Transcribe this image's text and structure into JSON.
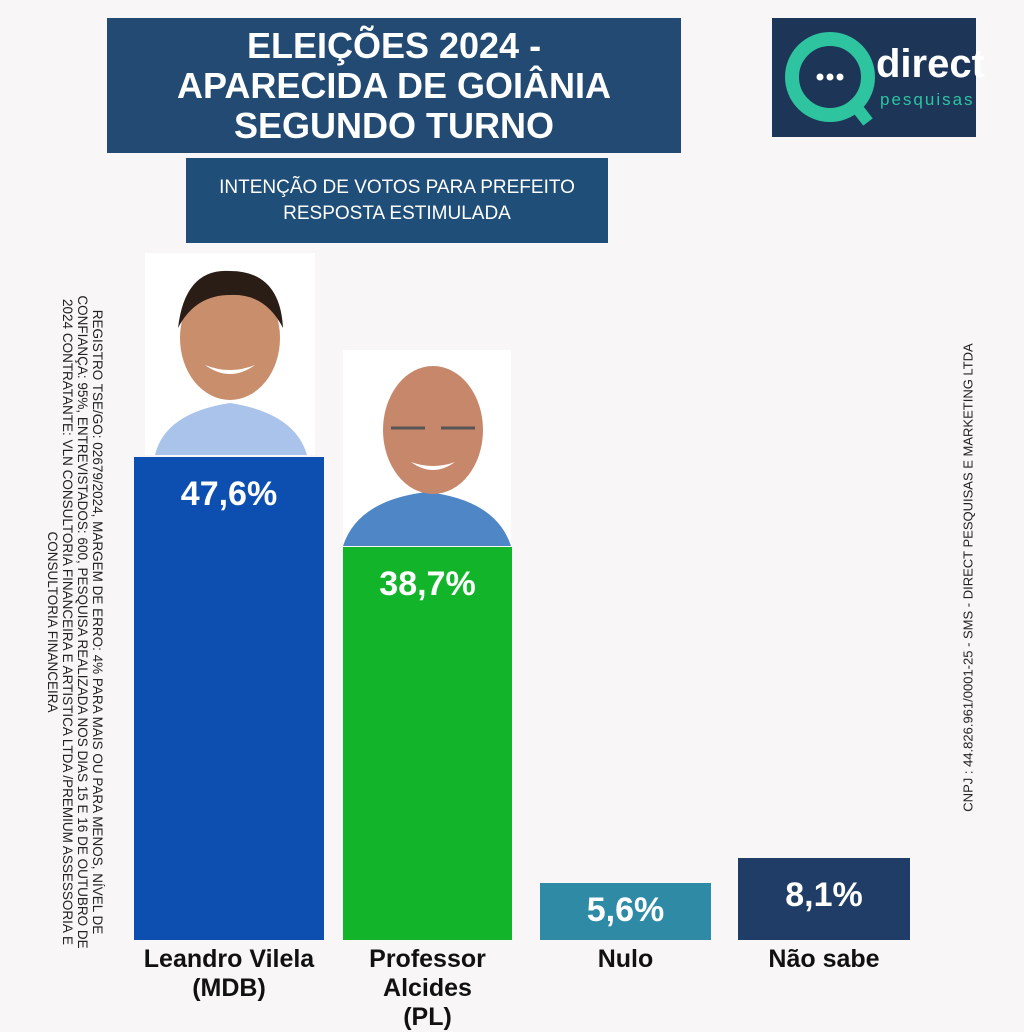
{
  "chart_data": {
    "type": "bar",
    "title": "ELEIÇÕES 2024 -\nAPARECIDA DE GOIÂNIA\nSEGUNDO TURNO",
    "subtitle": "INTENÇÃO DE VOTOS PARA PREFEITO\nRESPOSTA ESTIMULADA",
    "brand": {
      "name": "direct",
      "tagline": "pesquisas"
    },
    "methodology_note": "REGISTRO TSE/GO: 02679/2024, MARGEM DE ERRO: 4% PARA MAIS OU PARA MENOS, NÍVEL DE CONFIANÇA: 95%, ENTREVISTADOS: 600, PESQUISA REALIZADA NOS DIAS 15 E 16 DE OUTUBRO DE 2024 CONTRATANTE: VLN CONSULTORIA FINANCEIRA E ARTISTICA LTDA /PREMIUM ASSESSORIA E CONSULTORIA FINANCEIRA",
    "company_note": "CNPJ : 44.826.961/0001-25 - SMS - DIRECT PESQUISAS E MARKETING LTDA",
    "categories": [
      "Leandro Vilela\n(MDB)",
      "Professor Alcides\n(PL)",
      "Nulo",
      "Não sabe"
    ],
    "values": [
      47.6,
      38.7,
      5.6,
      8.1
    ],
    "value_labels": [
      "47,6%",
      "38,7%",
      "5,6%",
      "8,1%"
    ],
    "colors": [
      "#0d4fb0",
      "#12b52a",
      "#2f8aa6",
      "#1f3d66"
    ]
  }
}
